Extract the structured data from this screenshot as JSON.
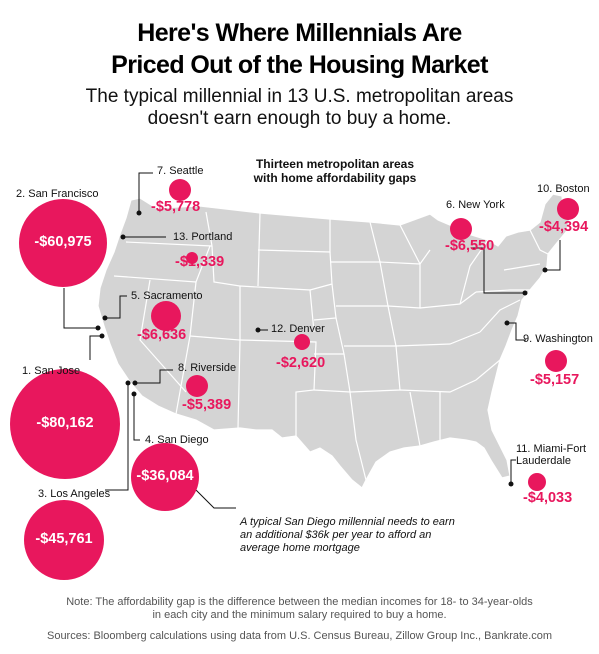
{
  "header": {
    "title_line1": "Here's Where Millennials Are",
    "title_line2": "Priced Out of the Housing Market",
    "subtitle_line1": "The typical millennial in 13 U.S. metropolitan areas",
    "subtitle_line2": "doesn't earn enough to buy a home."
  },
  "map": {
    "title_line1": "Thirteen metropolitan areas",
    "title_line2": "with home affordability gaps",
    "land_color": "#d4d4d4",
    "border_color": "#ffffff",
    "accent_color": "#e8175d"
  },
  "cities": [
    {
      "rank": 1,
      "label": "1. San Jose",
      "gap": "-$80,162",
      "gap_value": -80162
    },
    {
      "rank": 2,
      "label": "2. San Francisco",
      "gap": "-$60,975",
      "gap_value": -60975
    },
    {
      "rank": 3,
      "label": "3. Los Angeles",
      "gap": "-$45,761",
      "gap_value": -45761
    },
    {
      "rank": 4,
      "label": "4. San Diego",
      "gap": "-$36,084",
      "gap_value": -36084
    },
    {
      "rank": 5,
      "label": "5. Sacramento",
      "gap": "-$6,636",
      "gap_value": -6636
    },
    {
      "rank": 6,
      "label": "6. New York",
      "gap": "-$6,550",
      "gap_value": -6550
    },
    {
      "rank": 7,
      "label": "7. Seattle",
      "gap": "-$5,778",
      "gap_value": -5778
    },
    {
      "rank": 8,
      "label": "8. Riverside",
      "gap": "-$5,389",
      "gap_value": -5389
    },
    {
      "rank": 9,
      "label": "9. Washington",
      "gap": "-$5,157",
      "gap_value": -5157
    },
    {
      "rank": 10,
      "label": "10. Boston",
      "gap": "-$4,394",
      "gap_value": -4394
    },
    {
      "rank": 11,
      "label_line1": "11. Miami-Fort",
      "label_line2": "Lauderdale",
      "gap": "-$4,033",
      "gap_value": -4033
    },
    {
      "rank": 12,
      "label": "12. Denver",
      "gap": "-$2,620",
      "gap_value": -2620
    },
    {
      "rank": 13,
      "label": "13. Portland",
      "gap": "-$1,339",
      "gap_value": -1339
    }
  ],
  "annotation": {
    "line1": "A typical San Diego millennial needs to earn",
    "line2": "an additional $36k per year to afford an",
    "line3": "average home mortgage"
  },
  "footer": {
    "note_line1": "Note: The affordability gap is the difference between the median incomes for 18- to 34-year-olds",
    "note_line2": "in each city and the minimum salary required to buy a home.",
    "source": "Sources: Bloomberg calculations using data from U.S. Census Bureau, Zillow Group Inc., Bankrate.com"
  }
}
